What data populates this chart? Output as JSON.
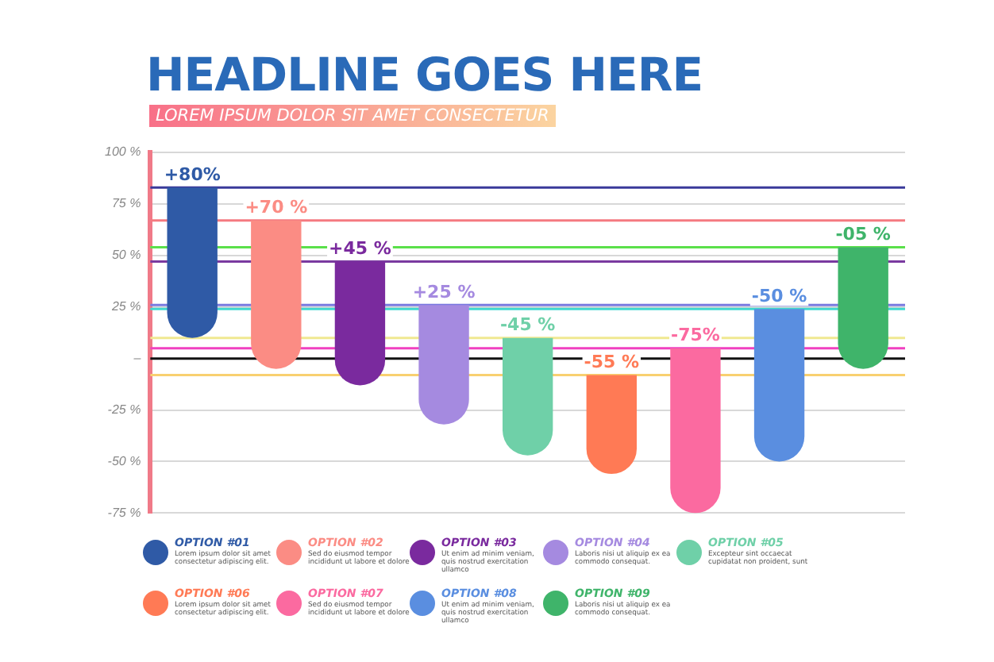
{
  "chart_data": {
    "type": "bar",
    "title": "HEADLINE GOES HERE",
    "subtitle": "LOREM IPSUM DOLOR SIT AMET CONSECTETUR",
    "categories": [
      null,
      null,
      null,
      null,
      null,
      null,
      null,
      null,
      null
    ],
    "series": [
      {
        "name": "OPTION #01",
        "color": "#2f5aa6",
        "base": [
          10,
          null,
          null,
          null,
          null,
          null,
          null,
          null,
          null
        ],
        "values": [
          73,
          null,
          null,
          null,
          null,
          null,
          null,
          null,
          null
        ]
      },
      {
        "name": "OPTION #02",
        "color": "#fb8c84",
        "base": [
          null,
          -5,
          null,
          null,
          null,
          null,
          null,
          null,
          null
        ],
        "values": [
          null,
          72,
          null,
          null,
          null,
          null,
          null,
          null,
          null
        ]
      },
      {
        "name": "OPTION #03",
        "color": "#7a2a9e",
        "base": [
          null,
          null,
          -13,
          null,
          null,
          null,
          null,
          null,
          null
        ],
        "values": [
          null,
          null,
          60,
          null,
          null,
          null,
          null,
          null,
          null
        ]
      },
      {
        "name": "OPTION #04",
        "color": "#a58ae0",
        "base": [
          null,
          null,
          null,
          -32,
          null,
          null,
          null,
          null,
          null
        ],
        "values": [
          null,
          null,
          null,
          58,
          null,
          null,
          null,
          null,
          null
        ]
      },
      {
        "name": "OPTION #05",
        "color": "#6fd0a8",
        "base": [
          null,
          null,
          null,
          null,
          -47,
          null,
          null,
          null,
          null
        ],
        "values": [
          null,
          null,
          null,
          null,
          57,
          null,
          null,
          null,
          null
        ]
      },
      {
        "name": "OPTION #06",
        "color": "#ff7a55",
        "base": [
          null,
          null,
          null,
          null,
          null,
          -56,
          null,
          null,
          null
        ],
        "values": [
          null,
          null,
          null,
          null,
          null,
          48,
          null,
          null,
          null
        ]
      },
      {
        "name": "OPTION #07",
        "color": "#fb6aa0",
        "base": [
          null,
          null,
          null,
          null,
          null,
          null,
          -75,
          null,
          null
        ],
        "values": [
          null,
          null,
          null,
          null,
          null,
          null,
          80,
          null,
          null
        ]
      },
      {
        "name": "OPTION #08",
        "color": "#5a8ee0",
        "base": [
          null,
          null,
          null,
          null,
          null,
          null,
          null,
          -50,
          null
        ],
        "values": [
          null,
          null,
          null,
          null,
          null,
          null,
          null,
          74,
          null
        ]
      },
      {
        "name": "OPTION #09",
        "color": "#3fb46a",
        "base": [
          null,
          null,
          null,
          null,
          null,
          null,
          null,
          null,
          -5
        ],
        "values": [
          null,
          null,
          null,
          null,
          null,
          null,
          null,
          null,
          59
        ]
      }
    ],
    "ylim": [
      -75,
      100
    ],
    "yticks": [
      {
        "value": -75,
        "label": "-75 %"
      },
      {
        "value": -50,
        "label": "-50 %"
      },
      {
        "value": -25,
        "label": "-25 %"
      },
      {
        "value": 0,
        "label": "–"
      },
      {
        "value": 25,
        "label": "25 %"
      },
      {
        "value": 50,
        "label": "50 %"
      },
      {
        "value": 75,
        "label": "75 %"
      },
      {
        "value": 100,
        "label": "100 %"
      }
    ],
    "grid": "y",
    "tick_labels": "y",
    "legend": "bottom",
    "ref_lines": [
      {
        "axis": "y",
        "value": 83,
        "color": "#3a3a9a"
      },
      {
        "axis": "y",
        "value": 67,
        "color": "#f57a80"
      },
      {
        "axis": "y",
        "value": 54,
        "color": "#5ae04a"
      },
      {
        "axis": "y",
        "value": 47,
        "color": "#7a3aa0"
      },
      {
        "axis": "y",
        "value": 26,
        "color": "#7a7ae0"
      },
      {
        "axis": "y",
        "value": 24,
        "color": "#40d8d0"
      },
      {
        "axis": "y",
        "value": 10,
        "color": "#f0e890"
      },
      {
        "axis": "y",
        "value": 5,
        "color": "#f040c0"
      },
      {
        "axis": "y",
        "value": -8,
        "color": "#f8d070"
      },
      {
        "axis": "y",
        "value": 0,
        "color": "#111111"
      }
    ],
    "annotations": [
      "Lorem ipsum dolor sit amet consectetur adipiscing elit.",
      "Sed do eiusmod tempor incididunt ut labore et dolore",
      "Ut enim ad minim veniam, quis nostrud exercitation ullamco",
      "Laboris nisi ut aliquip ex ea commodo consequat.",
      "Excepteur sint occaecat cupidatat non proident, sunt",
      "Lorem ipsum dolor sit amet consectetur adipiscing elit.",
      "Sed do eiusmod tempor incididunt ut labore et dolore",
      "Ut enim ad minim veniam, quis nostrud exercitation ullamco",
      "Laboris nisi ut aliquip ex ea commodo consequat.",
      {
        "text": "+80%",
        "y": 83
      },
      {
        "text": "+70 %",
        "y": 67
      },
      {
        "text": "+45 %",
        "y": 47
      },
      {
        "text": "+25 %",
        "y": 26
      },
      {
        "text": "-45 %",
        "y": 10
      },
      {
        "text": "-55 %",
        "y": -8
      },
      {
        "text": "-75%",
        "y": 5
      },
      {
        "text": "-50 %",
        "y": 24
      },
      {
        "text": "-05 %",
        "y": 54
      }
    ]
  }
}
